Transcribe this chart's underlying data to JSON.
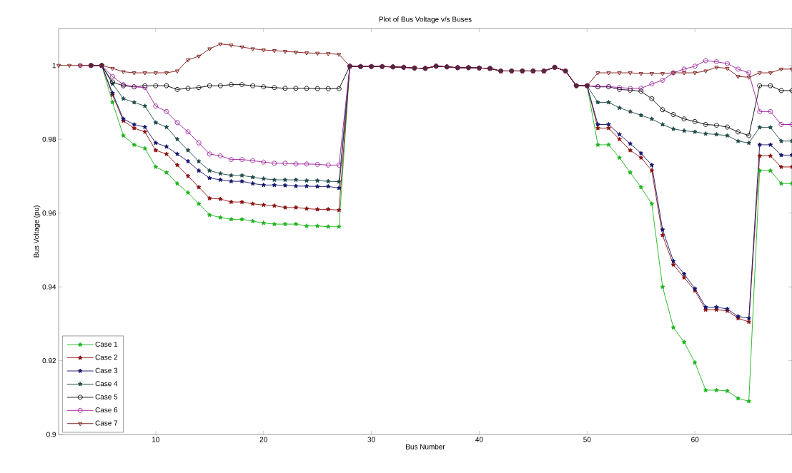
{
  "chart_data": {
    "type": "line",
    "title": "Plot of Bus Voltage v/s Buses",
    "xlabel": "Bus Number",
    "ylabel": "Bus Voltage (pu)",
    "x": [
      1,
      2,
      3,
      4,
      5,
      6,
      7,
      8,
      9,
      10,
      11,
      12,
      13,
      14,
      15,
      16,
      17,
      18,
      19,
      20,
      21,
      22,
      23,
      24,
      25,
      26,
      27,
      28,
      29,
      30,
      31,
      32,
      33,
      34,
      35,
      36,
      37,
      38,
      39,
      40,
      41,
      42,
      43,
      44,
      45,
      46,
      47,
      48,
      49,
      50,
      51,
      52,
      53,
      54,
      55,
      56,
      57,
      58,
      59,
      60,
      61,
      62,
      63,
      64,
      65,
      66,
      67,
      68,
      69
    ],
    "xlim": [
      1,
      69
    ],
    "ylim": [
      0.9,
      1.01
    ],
    "xticks": [
      10,
      20,
      30,
      40,
      50,
      60
    ],
    "yticks": [
      0.9,
      0.92,
      0.94,
      0.96,
      0.98,
      1
    ],
    "legend": "bottom left",
    "line_style": "solid",
    "series": [
      {
        "name": "Case 1",
        "color": "#1cb41c",
        "marker": "star",
        "values": [
          null,
          null,
          null,
          1,
          1,
          0.99,
          0.981,
          0.9785,
          0.9775,
          0.9725,
          0.971,
          0.968,
          0.9655,
          0.9625,
          0.9595,
          0.9588,
          0.9583,
          0.9583,
          0.9578,
          0.9573,
          0.957,
          0.957,
          0.957,
          0.9565,
          0.9565,
          0.9563,
          0.9563,
          0.9998,
          0.9997,
          0.9997,
          0.9997,
          0.9996,
          0.9995,
          0.9993,
          0.9992,
          0.9998,
          0.9996,
          0.9994,
          0.9994,
          0.9993,
          0.9992,
          0.9985,
          0.9985,
          0.9985,
          0.9985,
          0.9985,
          0.9995,
          0.9985,
          0.9945,
          0.9945,
          0.9785,
          0.9785,
          0.975,
          0.971,
          0.967,
          0.9625,
          0.94,
          0.929,
          0.925,
          0.9195,
          0.912,
          0.912,
          0.9118,
          0.9098,
          0.909,
          0.9715,
          0.9715,
          0.968,
          0.968
        ]
      },
      {
        "name": "Case 2",
        "color": "#8b1010",
        "marker": "star",
        "values": [
          null,
          null,
          null,
          1,
          1,
          0.992,
          0.985,
          0.983,
          0.982,
          0.977,
          0.976,
          0.973,
          0.97,
          0.967,
          0.964,
          0.9638,
          0.963,
          0.963,
          0.9625,
          0.9622,
          0.962,
          0.9615,
          0.9615,
          0.9612,
          0.961,
          0.961,
          0.9608,
          0.9998,
          0.9997,
          0.9997,
          0.9997,
          0.9996,
          0.9995,
          0.9993,
          0.9992,
          0.9998,
          0.9996,
          0.9994,
          0.9994,
          0.9993,
          0.9992,
          0.9985,
          0.9985,
          0.9985,
          0.9985,
          0.9985,
          0.9995,
          0.9985,
          0.9945,
          0.9945,
          0.983,
          0.983,
          0.98,
          0.977,
          0.975,
          0.9715,
          0.954,
          0.946,
          0.9425,
          0.939,
          0.9338,
          0.9338,
          0.9335,
          0.9315,
          0.9305,
          0.9755,
          0.9755,
          0.9725,
          0.9725
        ]
      },
      {
        "name": "Case 3",
        "color": "#14146e",
        "marker": "star",
        "values": [
          null,
          null,
          null,
          1,
          1,
          0.9925,
          0.9855,
          0.984,
          0.9833,
          0.979,
          0.978,
          0.976,
          0.974,
          0.9715,
          0.9695,
          0.969,
          0.9686,
          0.9686,
          0.968,
          0.9676,
          0.9676,
          0.9675,
          0.9673,
          0.9673,
          0.9672,
          0.9672,
          0.9668,
          0.9998,
          0.9997,
          0.9997,
          0.9997,
          0.9996,
          0.9995,
          0.9993,
          0.9992,
          0.9998,
          0.9996,
          0.9994,
          0.9994,
          0.9993,
          0.9992,
          0.9985,
          0.9985,
          0.9985,
          0.9985,
          0.9985,
          0.9995,
          0.9985,
          0.9945,
          0.9945,
          0.984,
          0.984,
          0.9813,
          0.9788,
          0.9762,
          0.973,
          0.9555,
          0.947,
          0.9435,
          0.9395,
          0.9345,
          0.9345,
          0.934,
          0.932,
          0.9315,
          0.9785,
          0.9785,
          0.9757,
          0.9757
        ]
      },
      {
        "name": "Case 4",
        "color": "#1e4848",
        "marker": "star",
        "values": [
          null,
          null,
          null,
          1,
          1,
          0.995,
          0.991,
          0.99,
          0.989,
          0.9845,
          0.9833,
          0.98,
          0.977,
          0.974,
          0.9715,
          0.9707,
          0.9702,
          0.9702,
          0.9697,
          0.9693,
          0.969,
          0.969,
          0.969,
          0.9688,
          0.9688,
          0.9686,
          0.9685,
          0.9998,
          0.9997,
          0.9997,
          0.9997,
          0.9996,
          0.9995,
          0.9993,
          0.9992,
          0.9998,
          0.9996,
          0.9994,
          0.9994,
          0.9993,
          0.9992,
          0.9985,
          0.9985,
          0.9985,
          0.9985,
          0.9985,
          0.9995,
          0.9985,
          0.9945,
          0.9945,
          0.99,
          0.99,
          0.9885,
          0.9875,
          0.9865,
          0.9855,
          0.984,
          0.9828,
          0.9823,
          0.982,
          0.9815,
          0.9813,
          0.981,
          0.9795,
          0.979,
          0.9832,
          0.9832,
          0.9795,
          0.9795
        ]
      },
      {
        "name": "Case 5",
        "color": "#000000",
        "marker": "circle",
        "values": [
          null,
          null,
          null,
          1,
          1,
          0.9955,
          0.9945,
          0.9942,
          0.9945,
          0.9945,
          0.9945,
          0.9935,
          0.9938,
          0.994,
          0.9945,
          0.9945,
          0.9948,
          0.9948,
          0.9945,
          0.9942,
          0.994,
          0.9938,
          0.9938,
          0.9938,
          0.9937,
          0.9937,
          0.9937,
          0.9998,
          0.9997,
          0.9997,
          0.9997,
          0.9996,
          0.9995,
          0.9993,
          0.9992,
          0.9998,
          0.9996,
          0.9994,
          0.9994,
          0.9993,
          0.9992,
          0.9985,
          0.9985,
          0.9985,
          0.9985,
          0.9985,
          0.9995,
          0.9985,
          0.9945,
          0.9945,
          0.9942,
          0.9942,
          0.9935,
          0.9933,
          0.993,
          0.991,
          0.988,
          0.9867,
          0.9855,
          0.9848,
          0.984,
          0.9838,
          0.9833,
          0.982,
          0.981,
          0.9945,
          0.9945,
          0.9932,
          0.9932
        ]
      },
      {
        "name": "Case 6",
        "color": "#9a1a9a",
        "marker": "circle",
        "values": [
          null,
          null,
          1,
          1,
          1,
          0.997,
          0.9948,
          0.9942,
          0.994,
          0.989,
          0.9875,
          0.9845,
          0.982,
          0.979,
          0.976,
          0.9755,
          0.9745,
          0.9745,
          0.9742,
          0.9738,
          0.9735,
          0.9735,
          0.9733,
          0.9733,
          0.9732,
          0.973,
          0.973,
          0.9998,
          0.9997,
          0.9997,
          0.9997,
          0.9996,
          0.9995,
          0.9993,
          0.9992,
          0.9998,
          0.9996,
          0.9994,
          0.9994,
          0.9993,
          0.9992,
          0.9985,
          0.9985,
          0.9985,
          0.9985,
          0.9985,
          0.9995,
          0.9985,
          0.9945,
          0.9945,
          0.9943,
          0.9943,
          0.994,
          0.9938,
          0.9938,
          0.995,
          0.996,
          0.998,
          0.999,
          0.9998,
          1.0013,
          1.001,
          1.0005,
          0.999,
          0.998,
          0.9875,
          0.9875,
          0.984,
          0.984
        ]
      },
      {
        "name": "Case 7",
        "color": "#7a1414",
        "marker": "triangle",
        "values": [
          1,
          1,
          1,
          1,
          1,
          0.9992,
          0.9983,
          0.998,
          0.998,
          0.998,
          0.998,
          0.9985,
          1.0015,
          1.0025,
          1.0045,
          1.0058,
          1.0055,
          1.005,
          1.0045,
          1.0042,
          1.004,
          1.0038,
          1.0036,
          1.0034,
          1.0033,
          1.0032,
          1.003,
          0.9998,
          0.9997,
          0.9997,
          0.9997,
          0.9996,
          0.9995,
          0.9993,
          0.9992,
          0.9998,
          0.9996,
          0.9994,
          0.9994,
          0.9993,
          0.9992,
          0.9985,
          0.9985,
          0.9985,
          0.9985,
          0.9985,
          0.9995,
          0.9985,
          0.9945,
          0.9945,
          0.998,
          0.998,
          0.998,
          0.998,
          0.9978,
          0.9978,
          0.9978,
          0.998,
          0.998,
          0.998,
          0.9985,
          0.9995,
          0.9992,
          0.997,
          0.9968,
          0.998,
          0.998,
          0.999,
          0.999
        ]
      }
    ]
  }
}
